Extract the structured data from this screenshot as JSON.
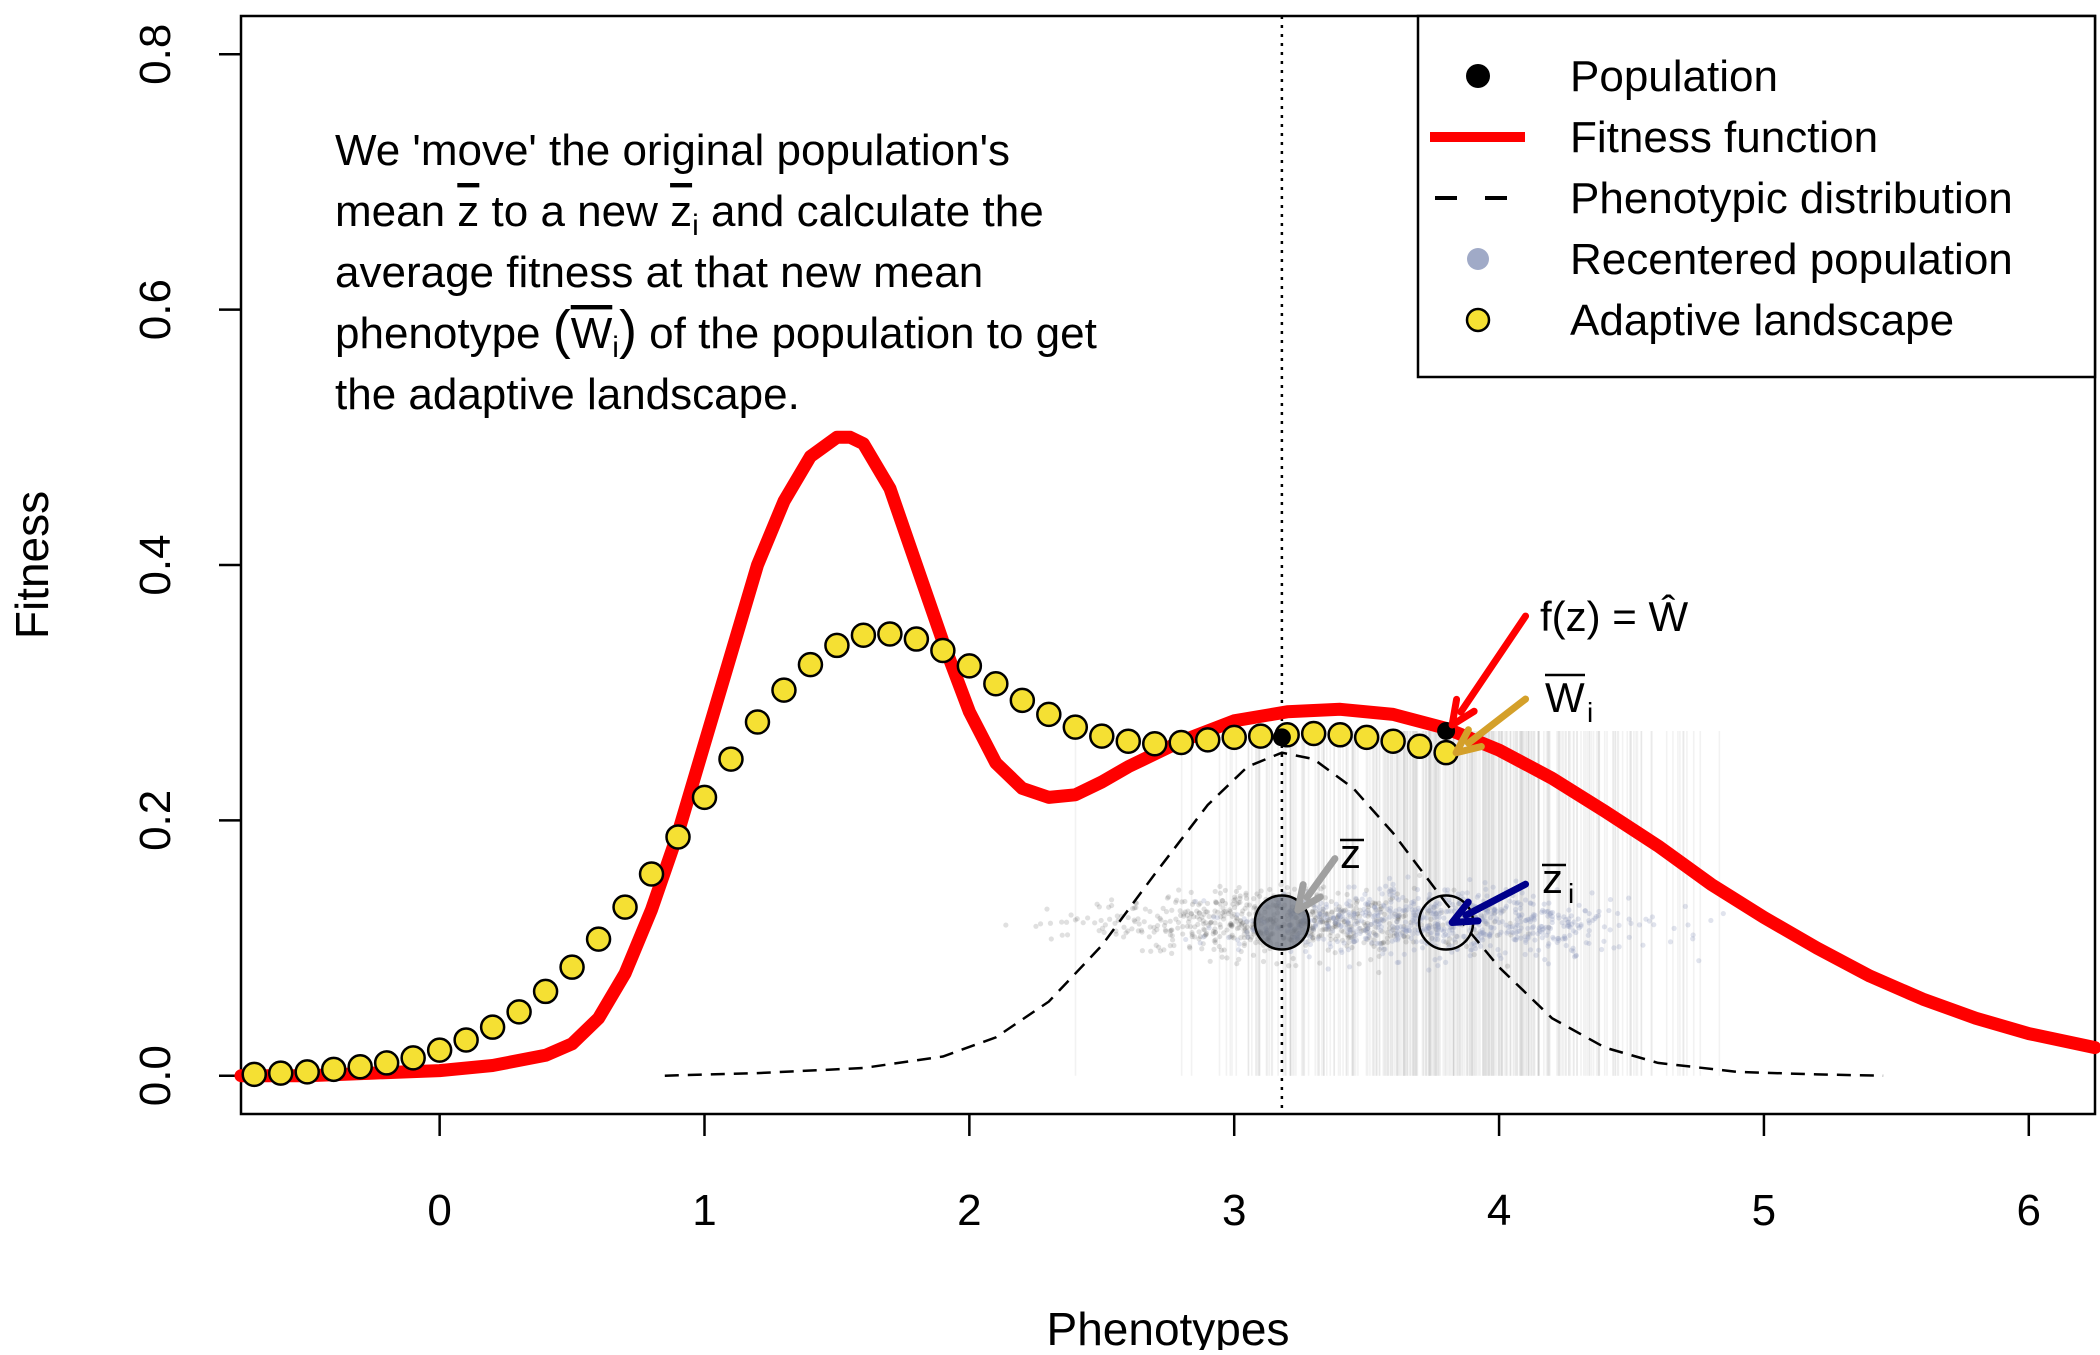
{
  "chart_data": {
    "type": "line",
    "xlabel": "Phenotypes",
    "ylabel": "Fitness",
    "xlim": [
      -0.75,
      6.25
    ],
    "ylim": [
      -0.03,
      0.83
    ],
    "x_ticks": [
      "0",
      "1",
      "2",
      "3",
      "4",
      "5",
      "6"
    ],
    "x_tick_values": [
      0,
      1,
      2,
      3,
      4,
      5,
      6
    ],
    "y_ticks": [
      "0.0",
      "0.2",
      "0.4",
      "0.6",
      "0.8"
    ],
    "y_tick_values": [
      0.0,
      0.2,
      0.4,
      0.6,
      0.8
    ],
    "vertical_line_x": 3.18,
    "legend": {
      "placement": "top-right",
      "entries": [
        {
          "label": "Population",
          "symbol": "filled-circle",
          "color": "#000000"
        },
        {
          "label": "Fitness function",
          "symbol": "solid-line",
          "color": "#ff0000"
        },
        {
          "label": "Phenotypic distribution",
          "symbol": "dashed-line",
          "color": "#000000"
        },
        {
          "label": "Recentered population",
          "symbol": "filled-circle",
          "color": "#8f9bbd"
        },
        {
          "label": "Adaptive landscape",
          "symbol": "filled-circle",
          "color": "#f5e033"
        }
      ]
    },
    "note_lines": [
      {
        "parts": [
          "We 'move' the original population's"
        ]
      },
      {
        "parts": [
          "mean ",
          "z",
          " to a new ",
          "z",
          "i",
          " and calculate the"
        ]
      },
      {
        "parts": [
          "average fitness at that new mean"
        ]
      },
      {
        "parts": [
          "phenotype ",
          "(",
          "W",
          "i",
          ")",
          " of the population to get"
        ]
      },
      {
        "parts": [
          "the adaptive landscape."
        ]
      }
    ],
    "annotations": {
      "fz_label": "f(z) = Ŵ",
      "wbar_label": "W",
      "wbar_sub": "i",
      "zbar_label": "z",
      "zbari_label": "z",
      "zbari_sub": "i"
    },
    "series": [
      {
        "name": "Fitness function",
        "color": "#ff0000",
        "x": [
          -0.75,
          -0.5,
          -0.25,
          0,
          0.2,
          0.4,
          0.5,
          0.6,
          0.7,
          0.8,
          0.9,
          1.0,
          1.1,
          1.2,
          1.3,
          1.4,
          1.5,
          1.55,
          1.6,
          1.7,
          1.8,
          1.9,
          2.0,
          2.1,
          2.2,
          2.3,
          2.4,
          2.5,
          2.6,
          2.8,
          3.0,
          3.2,
          3.4,
          3.6,
          3.8,
          4.0,
          4.2,
          4.4,
          4.6,
          4.8,
          5.0,
          5.2,
          5.4,
          5.6,
          5.8,
          6.0,
          6.25
        ],
        "y": [
          0.0,
          0.0,
          0.002,
          0.004,
          0.008,
          0.016,
          0.025,
          0.045,
          0.08,
          0.13,
          0.19,
          0.26,
          0.33,
          0.4,
          0.45,
          0.485,
          0.5,
          0.5,
          0.495,
          0.46,
          0.4,
          0.34,
          0.285,
          0.245,
          0.225,
          0.218,
          0.22,
          0.23,
          0.242,
          0.262,
          0.278,
          0.285,
          0.287,
          0.283,
          0.272,
          0.255,
          0.233,
          0.207,
          0.18,
          0.15,
          0.124,
          0.1,
          0.078,
          0.06,
          0.045,
          0.033,
          0.022
        ]
      },
      {
        "name": "Phenotypic distribution",
        "color": "#000000",
        "x": [
          0.85,
          1.2,
          1.6,
          1.9,
          2.1,
          2.3,
          2.5,
          2.7,
          2.9,
          3.05,
          3.18,
          3.3,
          3.45,
          3.6,
          3.8,
          4.0,
          4.2,
          4.4,
          4.6,
          4.9,
          5.2,
          5.45
        ],
        "y": [
          0.0,
          0.002,
          0.006,
          0.015,
          0.03,
          0.058,
          0.102,
          0.158,
          0.212,
          0.242,
          0.253,
          0.248,
          0.225,
          0.19,
          0.135,
          0.085,
          0.045,
          0.022,
          0.01,
          0.003,
          0.001,
          0.0
        ]
      },
      {
        "name": "Adaptive landscape",
        "color": "#f5e033",
        "x": [
          -0.7,
          -0.6,
          -0.5,
          -0.4,
          -0.3,
          -0.2,
          -0.1,
          0.0,
          0.1,
          0.2,
          0.3,
          0.4,
          0.5,
          0.6,
          0.7,
          0.8,
          0.9,
          1.0,
          1.1,
          1.2,
          1.3,
          1.4,
          1.5,
          1.6,
          1.7,
          1.8,
          1.9,
          2.0,
          2.1,
          2.2,
          2.3,
          2.4,
          2.5,
          2.6,
          2.7,
          2.8,
          2.9,
          3.0,
          3.1,
          3.2,
          3.3,
          3.4,
          3.5,
          3.6,
          3.7,
          3.8
        ],
        "y": [
          0.001,
          0.002,
          0.003,
          0.005,
          0.007,
          0.01,
          0.014,
          0.02,
          0.028,
          0.038,
          0.05,
          0.066,
          0.085,
          0.107,
          0.132,
          0.158,
          0.187,
          0.218,
          0.248,
          0.277,
          0.302,
          0.322,
          0.337,
          0.345,
          0.346,
          0.342,
          0.333,
          0.321,
          0.307,
          0.294,
          0.283,
          0.273,
          0.266,
          0.262,
          0.26,
          0.261,
          0.263,
          0.265,
          0.266,
          0.267,
          0.268,
          0.267,
          0.265,
          0.262,
          0.258,
          0.253
        ]
      },
      {
        "name": "Population",
        "color": "#000000",
        "x": [
          3.18,
          3.8
        ],
        "y": [
          0.265,
          0.27
        ]
      }
    ],
    "population_markers": [
      {
        "label": "z",
        "x": 3.18,
        "y": 0.12
      },
      {
        "label": "z_i",
        "x": 3.8,
        "y": 0.12
      }
    ],
    "colors": {
      "fitness": "#ff0000",
      "adaptive_fill": "#f5e033",
      "recentered": "#8f9bbd",
      "arrow_wbar": "#d4a02a",
      "arrow_zbari": "#00008b",
      "arrow_zbar": "#a0a0a0"
    }
  }
}
